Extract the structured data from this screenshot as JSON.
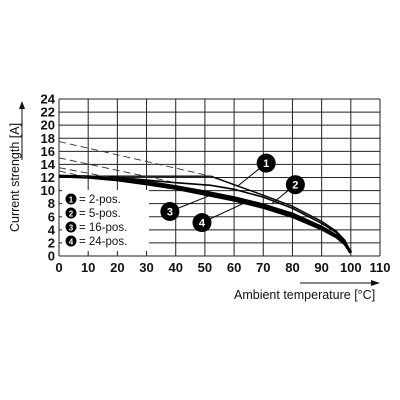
{
  "chart_data": {
    "type": "line",
    "title": "",
    "xlabel": "Ambient temperature [°C]",
    "ylabel": "Current strength [A]",
    "xlim": [
      0,
      110
    ],
    "ylim": [
      0,
      24
    ],
    "xticks": [
      0,
      10,
      20,
      30,
      40,
      50,
      60,
      70,
      80,
      90,
      100,
      110
    ],
    "yticks": [
      0,
      2,
      4,
      6,
      8,
      10,
      12,
      14,
      16,
      18,
      20,
      22,
      24
    ],
    "grid": true,
    "legend_position": "left",
    "series": [
      {
        "marker": "1",
        "name": "= 2-pos.",
        "x": [
          0,
          52,
          60,
          70,
          80,
          90,
          95,
          98,
          100
        ],
        "y": [
          12.2,
          12.2,
          10.9,
          9.3,
          7.6,
          5.3,
          3.8,
          2.4,
          0.5
        ],
        "derating_x": [
          0,
          52
        ],
        "derating_y": [
          17.5,
          12.2
        ]
      },
      {
        "marker": "2",
        "name": "= 5-pos.",
        "x": [
          0,
          20,
          40,
          52,
          60,
          70,
          80,
          90,
          95,
          98,
          100
        ],
        "y": [
          12.2,
          12.0,
          11.2,
          10.8,
          10.2,
          9.0,
          7.3,
          5.0,
          3.6,
          2.2,
          0.5
        ],
        "derating_x": [
          0,
          40
        ],
        "derating_y": [
          15.0,
          11.2
        ]
      },
      {
        "marker": "3",
        "name": "= 16-pos.",
        "x": [
          0,
          10,
          20,
          30,
          40,
          50,
          60,
          70,
          80,
          90,
          95,
          98,
          100
        ],
        "y": [
          12.2,
          12.1,
          11.8,
          11.3,
          10.6,
          9.8,
          8.9,
          7.8,
          6.4,
          4.4,
          3.1,
          1.9,
          0.5
        ],
        "derating_x": [
          0,
          20
        ],
        "derating_y": [
          13.5,
          11.8
        ]
      },
      {
        "marker": "4",
        "name": "= 24-pos.",
        "x": [
          0,
          10,
          20,
          30,
          40,
          50,
          60,
          70,
          80,
          90,
          95,
          98,
          100
        ],
        "y": [
          12.2,
          12.0,
          11.6,
          11.0,
          10.3,
          9.4,
          8.5,
          7.4,
          6.0,
          4.1,
          2.9,
          1.8,
          0.5
        ],
        "derating_x": [
          0,
          10
        ],
        "derating_y": [
          13.0,
          12.0
        ]
      }
    ],
    "marker_positions": [
      {
        "label": "1",
        "x": 71,
        "y": 14.2,
        "target_x": 61,
        "target_y": 10.6
      },
      {
        "label": "2",
        "x": 81,
        "y": 10.9,
        "target_x": 73,
        "target_y": 8.0
      },
      {
        "label": "3",
        "x": 38,
        "y": 6.8,
        "target_x": 52,
        "target_y": 9.3
      },
      {
        "label": "4",
        "x": 49,
        "y": 5.1,
        "target_x": 63,
        "target_y": 8.0
      }
    ]
  }
}
